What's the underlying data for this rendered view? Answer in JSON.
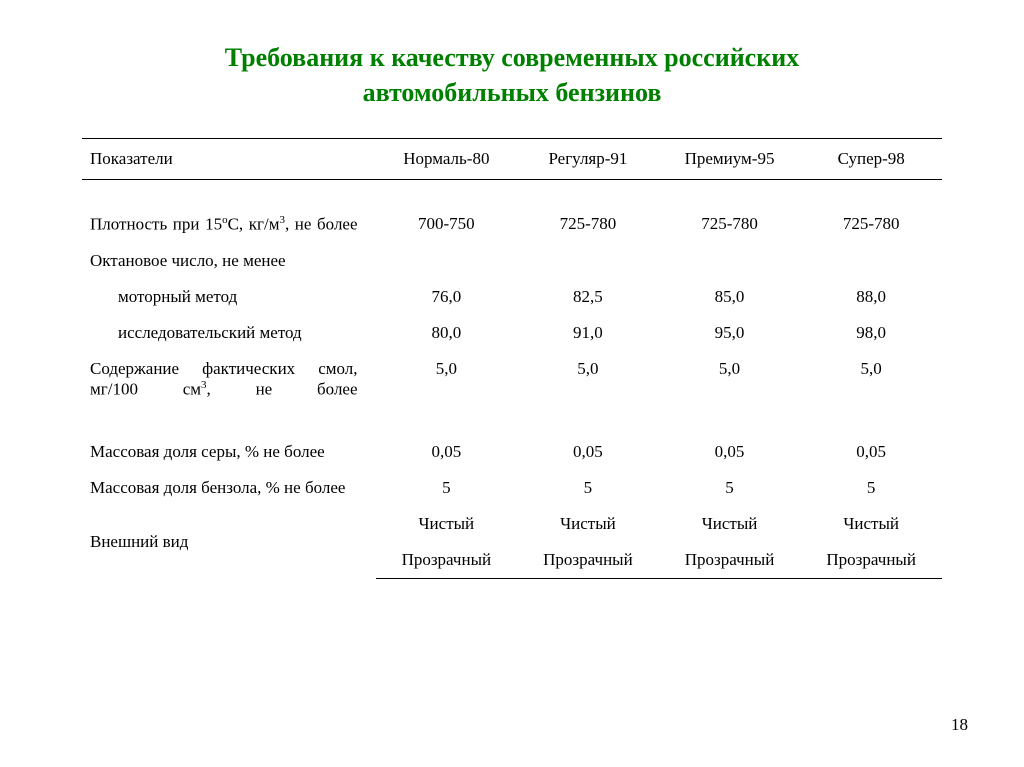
{
  "title_line1": "Требования к качеству современных российских",
  "title_line2": "автомобильных бензинов",
  "columns": {
    "c0": "Показатели",
    "c1": "Нормаль-80",
    "c2": "Регуляр-91",
    "c3": "Премиум-95",
    "c4": "Супер-98"
  },
  "rows": {
    "density": {
      "label_l1": "Плотность при 15",
      "label_l2": "С, кг/м",
      "label_l3": ", не более",
      "v1": "700-750",
      "v2": "725-780",
      "v3": "725-780",
      "v4": "725-780"
    },
    "octane_header": "Октановое число, не менее",
    "motor": {
      "label": "моторный метод",
      "v1": "76,0",
      "v2": "82,5",
      "v3": "85,0",
      "v4": "88,0"
    },
    "research": {
      "label": "исследовательский метод",
      "v1": "80,0",
      "v2": "91,0",
      "v3": "95,0",
      "v4": "98,0"
    },
    "gums": {
      "label_a": "Содержание фактических смол, мг/100 см",
      "label_b": ", не более",
      "v1": "5,0",
      "v2": "5,0",
      "v3": "5,0",
      "v4": "5,0"
    },
    "sulfur": {
      "label": "Массовая доля серы, % не более",
      "v1": "0,05",
      "v2": "0,05",
      "v3": "0,05",
      "v4": "0,05"
    },
    "benzene": {
      "label": "Массовая доля бензола, % не более",
      "v1": "5",
      "v2": "5",
      "v3": "5",
      "v4": "5"
    },
    "appearance": {
      "label": "Внешний вид",
      "clean": "Чистый",
      "transparent": "Прозрачный"
    }
  },
  "page_number": "18"
}
